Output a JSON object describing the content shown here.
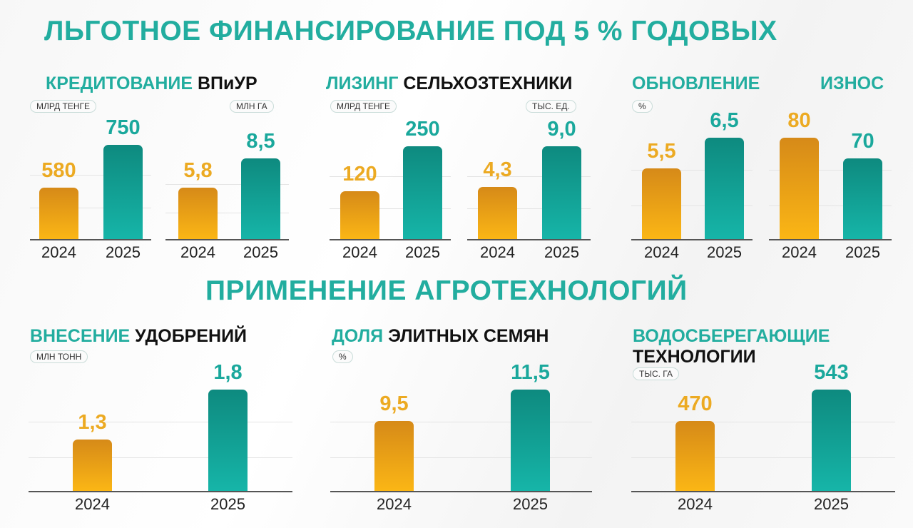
{
  "colors": {
    "accent": "#22ad9f",
    "bar_2024": "#f0a81c",
    "bar_2025": "#14a89b"
  },
  "titles": {
    "financing": "ЛЬГОТНОЕ ФИНАНСИРОВАНИЕ ПОД 5 % ГОДОВЫХ",
    "agro": "ПРИМЕНЕНИЕ АГРОТЕХНОЛОГИЙ"
  },
  "sections": {
    "credit": {
      "accent": "КРЕДИТОВАНИЕ",
      "rest": "ВПиУР"
    },
    "leasing": {
      "accent": "ЛИЗИНГ",
      "rest": "СЕЛЬХОЗТЕХНИКИ"
    },
    "renewal": {
      "accent": "ОБНОВЛЕНИЕ"
    },
    "wear": {
      "accent": "ИЗНОС"
    },
    "fert": {
      "accent": "ВНЕСЕНИЕ",
      "rest": "УДОБРЕНИЙ"
    },
    "seeds": {
      "accent": "ДОЛЯ",
      "rest": "ЭЛИТНЫХ СЕМЯН"
    },
    "water": {
      "accent": "ВОДОСБЕРЕГАЮЩИЕ",
      "rest": "ТЕХНОЛОГИИ"
    }
  },
  "chart_data": [
    {
      "type": "bar",
      "title": "Кредитование ВПиУР",
      "unit": "МЛРД ТЕНГЕ",
      "categories": [
        "2024",
        "2025"
      ],
      "values": [
        580,
        750
      ],
      "labels": [
        "580",
        "750"
      ]
    },
    {
      "type": "bar",
      "title": "Кредитование ВПиУР",
      "unit": "МЛН ГА",
      "categories": [
        "2024",
        "2025"
      ],
      "values": [
        5.8,
        8.5
      ],
      "labels": [
        "5,8",
        "8,5"
      ]
    },
    {
      "type": "bar",
      "title": "Лизинг сельхозтехники",
      "unit": "МЛРД ТЕНГЕ",
      "categories": [
        "2024",
        "2025"
      ],
      "values": [
        120,
        250
      ],
      "labels": [
        "120",
        "250"
      ]
    },
    {
      "type": "bar",
      "title": "Лизинг сельхозтехники",
      "unit": "ТЫС. ЕД.",
      "categories": [
        "2024",
        "2025"
      ],
      "values": [
        4.3,
        9.0
      ],
      "labels": [
        "4,3",
        "9,0"
      ]
    },
    {
      "type": "bar",
      "title": "Обновление",
      "unit": "%",
      "categories": [
        "2024",
        "2025"
      ],
      "values": [
        5.5,
        6.5
      ],
      "labels": [
        "5,5",
        "6,5"
      ]
    },
    {
      "type": "bar",
      "title": "Износ",
      "unit": "",
      "categories": [
        "2024",
        "2025"
      ],
      "values": [
        80,
        70
      ],
      "labels": [
        "80",
        "70"
      ]
    },
    {
      "type": "bar",
      "title": "Внесение удобрений",
      "unit": "МЛН ТОНН",
      "categories": [
        "2024",
        "2025"
      ],
      "values": [
        1.3,
        1.8
      ],
      "labels": [
        "1,3",
        "1,8"
      ]
    },
    {
      "type": "bar",
      "title": "Доля элитных семян",
      "unit": "%",
      "categories": [
        "2024",
        "2025"
      ],
      "values": [
        9.5,
        11.5
      ],
      "labels": [
        "9,5",
        "11,5"
      ]
    },
    {
      "type": "bar",
      "title": "Водосберегающие технологии",
      "unit": "ТЫС. ГА",
      "categories": [
        "2024",
        "2025"
      ],
      "values": [
        470,
        543
      ],
      "labels": [
        "470",
        "543"
      ]
    }
  ]
}
